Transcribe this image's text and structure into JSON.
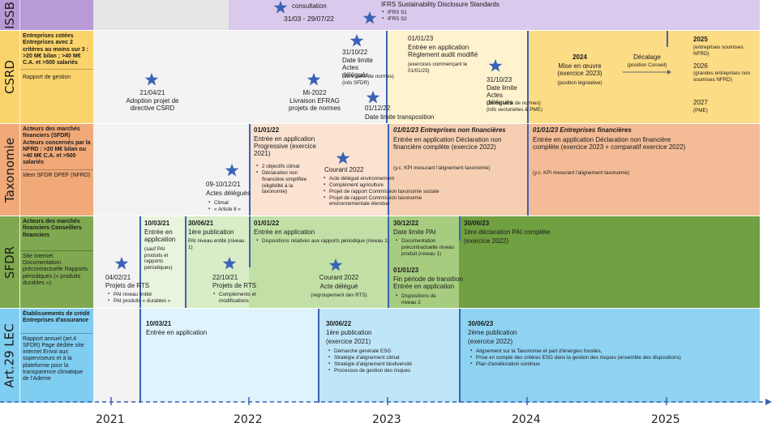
{
  "axis": {
    "years": [
      "2021",
      "2022",
      "2023",
      "2024",
      "2025"
    ]
  },
  "rows": {
    "issb": {
      "label": "ISSB",
      "consultation": "consultation",
      "consultation_dates": "31/03 - 29/07/22",
      "standards_title": "IFRS Sustainability Disclosure Standards",
      "standards": [
        "IFRS S1",
        "IFRS S2"
      ]
    },
    "csrd": {
      "label": "CSRD",
      "scope": "Entreprises cotées Entreprises avec 2 critères au moins sur 3 : >20 M€ bilan ; >40 M€ C.A. et >500 salariés",
      "report": "Rapport de gestion",
      "adoption_date": "21/04/21",
      "adoption_text": "Adoption projet de directive CSRD",
      "efrag_date": "Mi-2022",
      "efrag_text": "Livraison EFRAG projets de normes",
      "deadline1_date": "31/10/22",
      "deadline1_text": "Date limite Actes délégués",
      "deadline1_note": "(1ère série de normes) (info SFDR)",
      "transpo_date": "01/12/22",
      "transpo_text": "Date limite transposition",
      "app_date": "01/01/23",
      "app_text": "Entrée en application Règlement audit modifié",
      "app_note": "(exercices commençant le 01/01/23)",
      "deadline2_date": "31/10/23",
      "deadline2_text": "Date limite Actes délégués",
      "deadline2_note": "(2ème série de normes) (info sectorielles & PME)",
      "y2024_title": "2024",
      "y2024_text": "Mise en œuvre (exercice 2023)",
      "y2024_note": "(position législative)",
      "shift_text": "Décalage",
      "shift_note": "(position Conseil)",
      "y2025_title": "2025",
      "y2025_note": "(entreprises soumises NFRD)",
      "y2026_title": "2026",
      "y2026_note": "(grandes entreprises non soumises NFRD)",
      "y2027_title": "2027",
      "y2027_note": "(PME)"
    },
    "taxo": {
      "label": "Taxonomie",
      "scope": "Acteurs des marchés financiers (SFDR) Acteurs concernés par la NFRD : >20 M€ bilan ou >40 M€ C.A. et >500 salariés",
      "report": "Idem SFDR DPEF (NFRD)",
      "acts_date": "09-10/12/21",
      "acts_text": "Actes délégués",
      "acts_items": [
        "Climat",
        "« Article 8 »"
      ],
      "prog_date": "01/01/22",
      "prog_text": "Entrée en application Progressive (exercice 2021)",
      "prog_items": [
        "2 objectifs climat",
        "Déclaration non financière simplifiée (éligibilité à la taxonomie)"
      ],
      "current_title": "Courant 2022",
      "current_items": [
        "Acte délégué environnement",
        "Complément agriculture",
        "Projet de rapport Commission taxonomie sociale",
        "Projet de rapport Commission taxonomie environnementale étendue"
      ],
      "nonfin_date": "01/01/23 Entreprises non financières",
      "nonfin_text": "Entrée en application Déclaration non financière complète (exercice 2022)",
      "nonfin_note": "(y.c. KPI mesurant l'alignement taxonomie)",
      "fin_date": "01/01/23 Entreprises financières",
      "fin_text": "Entrée en application Déclaration non financière complète (exercice 2023 + comparatif exercice 2022)",
      "fin_note": "(y.c. KPI mesurant l'alignement taxonomie)"
    },
    "sfdr": {
      "label": "SFDR",
      "scope": "Acteurs des marchés financiers Conseillers financiers",
      "report": "Site internet Documentation précontractuelle Rapports périodiques (« produits durables »)",
      "rts1_date": "04/02/21",
      "rts1_text": "Projets de RTS",
      "rts1_items": [
        "PAI niveau entité",
        "PAI produits « durables »"
      ],
      "app1_date": "10/03/21",
      "app1_text": "Entrée en application",
      "app1_note": "(sauf PAI produits et rapports périodiques)",
      "pub1_date": "30/06/21",
      "pub1_text": "1ère publication",
      "pub1_note": "PAI niveau entité (niveau 1)",
      "rts2_date": "22/10/21",
      "rts2_text": "Projets de RTS",
      "rts2_items": [
        "Compléments et modifications"
      ],
      "app2_date": "01/01/22",
      "app2_text": "Entrée en application",
      "app2_items": [
        "Dispositions relatives aux rapports périodique (niveau 1)"
      ],
      "act_title": "Courant 2022",
      "act_text": "Acte délégué",
      "act_note": "(regroupement des RTS)",
      "pai_date": "30/12/22",
      "pai_text": "Date limite PAI",
      "pai_items": [
        "Documentation précontractuelle niveau produit (niveau 1)"
      ],
      "trans_date": "01/01/23",
      "trans_text": "Fin période de transition Entrée en application",
      "trans_items": [
        "Dispositions de niveau 2"
      ],
      "full_date": "30/06/23",
      "full_text": "1ère déclaration PAI complète",
      "full_note": "(exercice 2022)"
    },
    "lec": {
      "label": "Art.29 LEC",
      "scope": "Établissements de crédit Entreprises d'assurance",
      "report": "Rapport annuel (art.4 SFDR) Page dédiée site internet Envoi aux superviseurs et à la plateforme pour la transparence climatique de l'Ademe",
      "app_date": "10/03/21",
      "app_text": "Entrée en application",
      "pub1_date": "30/06/22",
      "pub1_text": "1ère publication",
      "pub1_note": "(exercice 2021)",
      "pub1_items": [
        "Démarche générale ESG",
        "Stratégie d'alignement climat",
        "Stratégie d'alignement biodiversité",
        "Processus de gestion des risques"
      ],
      "pub2_date": "30/06/23",
      "pub2_text": "2ème publication",
      "pub2_note": "(exercice 2022)",
      "pub2_items": [
        "Alignement sur la Taxonomie et part d'énergies fossiles,",
        "Prise en compte des critères ESG dans la gestion des risques (ensemble des dispositions)",
        "Plan d'amélioration continue"
      ]
    }
  },
  "colors": {
    "issb": "#d9c9ec",
    "issb_label": "#b79ad6",
    "csrd": "#fde6a6",
    "csrd_label": "#fbd36b",
    "taxo": "#f4c3a3",
    "taxo_label": "#f0a977",
    "sfdr": "#cde8b4",
    "sfdr_label": "#7fa950",
    "sfdr_dark": "#70a042",
    "lec": "#c9ecfa",
    "lec_label": "#7fcdf1",
    "star": "#3b63b5",
    "axis": "#3b63b5"
  }
}
